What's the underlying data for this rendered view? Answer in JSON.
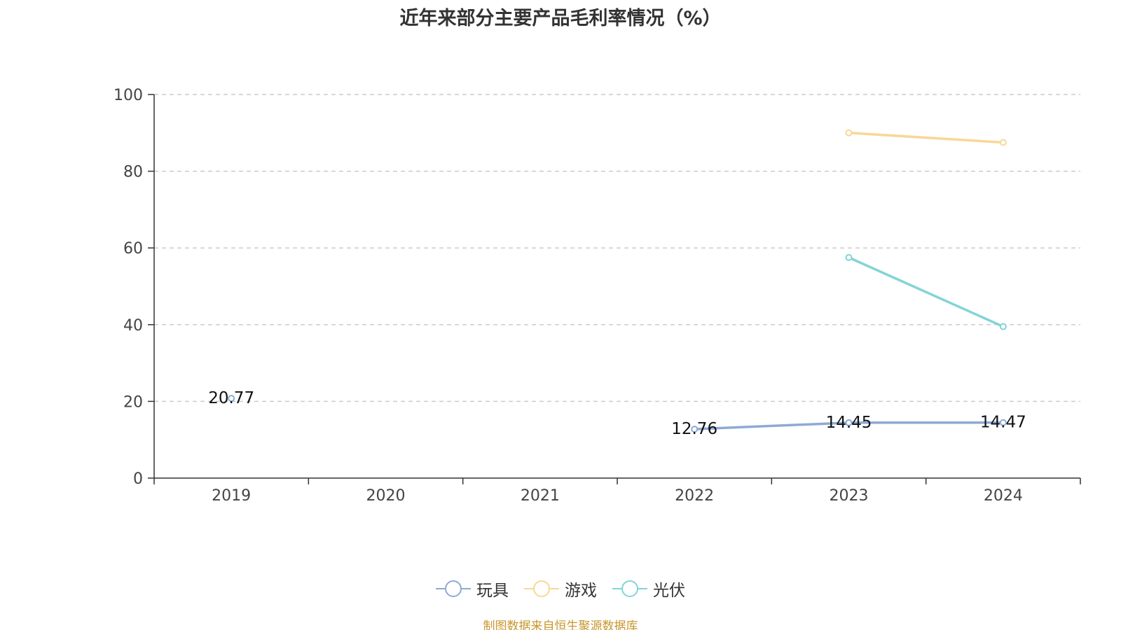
{
  "chart_data": {
    "type": "line",
    "title": "近年来部分主要产品毛利率情况（%）",
    "categories": [
      "2019",
      "2020",
      "2021",
      "2022",
      "2023",
      "2024"
    ],
    "ylim": [
      0,
      100
    ],
    "yticks": [
      "0",
      "20",
      "40",
      "60",
      "80",
      "100"
    ],
    "grid": true,
    "legend_position": "bottom",
    "series": [
      {
        "name": "玩具",
        "color": "#8eaad4",
        "values": [
          20.77,
          null,
          null,
          12.76,
          14.45,
          14.47
        ],
        "data_labels": [
          "20.77",
          null,
          null,
          "12.76",
          "14.45",
          "14.47"
        ]
      },
      {
        "name": "游戏",
        "color": "#f8d796",
        "values": [
          null,
          null,
          null,
          null,
          90.0,
          87.5
        ],
        "data_labels": [
          null,
          null,
          null,
          null,
          null,
          null
        ]
      },
      {
        "name": "光伏",
        "color": "#83d4d6",
        "values": [
          null,
          null,
          null,
          null,
          57.5,
          39.5
        ],
        "data_labels": [
          null,
          null,
          null,
          null,
          null,
          null
        ]
      }
    ]
  },
  "source_note": "制图数据来自恒生聚源数据库"
}
